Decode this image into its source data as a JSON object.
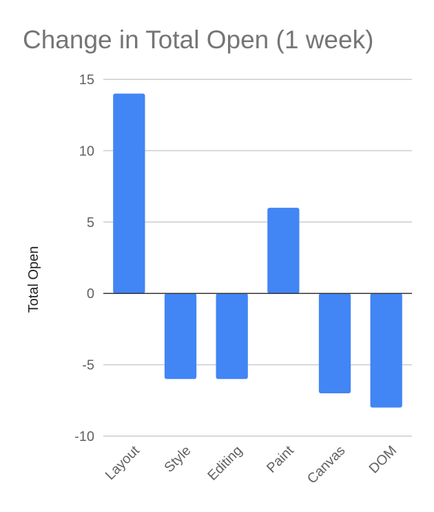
{
  "chart_data": {
    "type": "bar",
    "title": "Change in Total Open (1 week)",
    "ylabel": "Total Open",
    "xlabel": "",
    "categories": [
      "Layout",
      "Style",
      "Editing",
      "Paint",
      "Canvas",
      "DOM"
    ],
    "values": [
      14,
      -6,
      -6,
      6,
      -7,
      -8
    ],
    "ylim": [
      -10,
      15
    ],
    "yticks": [
      15,
      10,
      5,
      0,
      -5,
      -10
    ],
    "grid": true,
    "legend": "none",
    "colors": {
      "bar": "#4285f4",
      "grid": "#cccccc",
      "zero_line": "#333333"
    }
  }
}
